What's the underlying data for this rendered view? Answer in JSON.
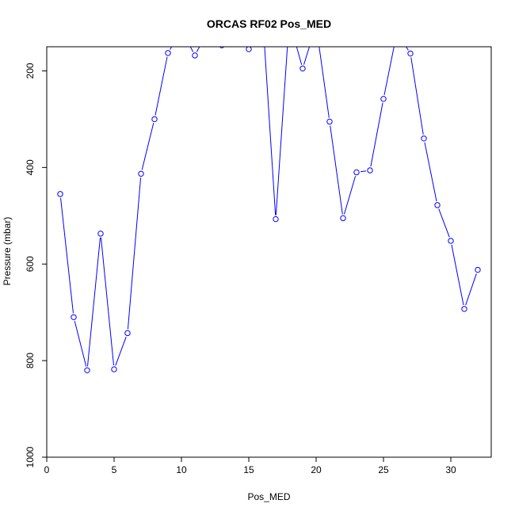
{
  "chart_data": {
    "type": "line",
    "title": "ORCAS RF02 Pos_MED",
    "xlabel": "Pos_MED",
    "ylabel": "Pressure (mbar)",
    "xlim": [
      0,
      33
    ],
    "ylim": [
      1000,
      150
    ],
    "y_reversed": true,
    "grid": false,
    "legend": "none",
    "x_ticks": [
      0,
      5,
      10,
      15,
      20,
      25,
      30
    ],
    "y_ticks": [
      200,
      400,
      600,
      800,
      1000
    ],
    "series": [
      {
        "color": "#0000ff",
        "marker": "open-circle",
        "x": [
          1,
          2,
          3,
          4,
          5,
          6,
          7,
          8,
          9,
          10,
          11,
          12,
          13,
          14,
          15,
          16,
          17,
          18,
          19,
          20,
          21,
          22,
          23,
          24,
          25,
          26,
          27,
          28,
          29,
          30,
          31,
          32
        ],
        "y": [
          455,
          710,
          820,
          537,
          818,
          743,
          413,
          300,
          163,
          115,
          168,
          115,
          147,
          115,
          155,
          75,
          507,
          95,
          195,
          105,
          305,
          505,
          410,
          406,
          258,
          120,
          164,
          340,
          478,
          552,
          693,
          612
        ]
      }
    ]
  }
}
